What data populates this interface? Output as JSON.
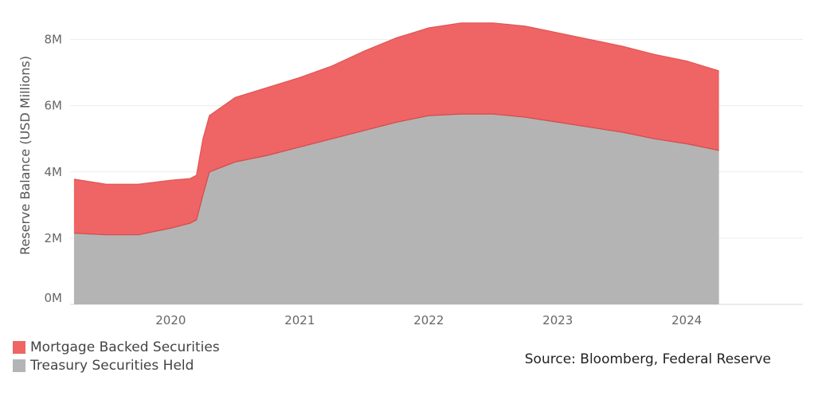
{
  "chart_data": {
    "type": "area",
    "stacked": true,
    "ylabel": "Reserve Balance (USD Millions)",
    "ylim": [
      0,
      9000000
    ],
    "yticks": [
      {
        "value": 0,
        "label": "0M"
      },
      {
        "value": 2000000,
        "label": "2M"
      },
      {
        "value": 4000000,
        "label": "4M"
      },
      {
        "value": 6000000,
        "label": "6M"
      },
      {
        "value": 8000000,
        "label": "8M"
      }
    ],
    "xlim": [
      2019.22,
      2024.9
    ],
    "xticks": [
      {
        "value": 2020,
        "label": "2020"
      },
      {
        "value": 2021,
        "label": "2021"
      },
      {
        "value": 2022,
        "label": "2022"
      },
      {
        "value": 2023,
        "label": "2023"
      },
      {
        "value": 2024,
        "label": "2024"
      }
    ],
    "grid": true,
    "legend_position": "bottom-left",
    "x": [
      2019.25,
      2019.5,
      2019.75,
      2020.0,
      2020.15,
      2020.2,
      2020.25,
      2020.3,
      2020.5,
      2020.75,
      2021.0,
      2021.25,
      2021.5,
      2021.75,
      2022.0,
      2022.25,
      2022.5,
      2022.75,
      2023.0,
      2023.25,
      2023.5,
      2023.75,
      2024.0,
      2024.25
    ],
    "series": [
      {
        "name": "Treasury Securities Held",
        "color": "#b4b4b4",
        "values": [
          2150000,
          2100000,
          2100000,
          2300000,
          2450000,
          2550000,
          3300000,
          4000000,
          4300000,
          4500000,
          4750000,
          5000000,
          5250000,
          5500000,
          5700000,
          5750000,
          5750000,
          5650000,
          5500000,
          5350000,
          5200000,
          5000000,
          4850000,
          4650000
        ]
      },
      {
        "name": "Mortgage Backed Securities",
        "color": "#ef6464",
        "values": [
          1630000,
          1530000,
          1530000,
          1450000,
          1350000,
          1350000,
          1700000,
          1700000,
          1950000,
          2050000,
          2100000,
          2200000,
          2400000,
          2550000,
          2650000,
          2750000,
          2750000,
          2750000,
          2700000,
          2650000,
          2600000,
          2550000,
          2500000,
          2400000
        ]
      }
    ],
    "source": "Source: Bloomberg, Federal Reserve"
  }
}
